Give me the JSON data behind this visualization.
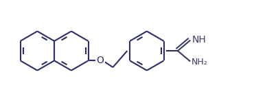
{
  "bg_color": "#ffffff",
  "line_color": "#2d2d6b",
  "amidine_color": "#3a3a6b",
  "line_width": 1.5,
  "font_size_NH": 10,
  "font_size_NH2": 9,
  "font_size_O": 10,
  "figsize": [
    4.06,
    1.53
  ],
  "dpi": 100,
  "ring_r": 0.31,
  "xlim": [
    0.05,
    4.06
  ],
  "ylim": [
    -0.05,
    1.53
  ]
}
